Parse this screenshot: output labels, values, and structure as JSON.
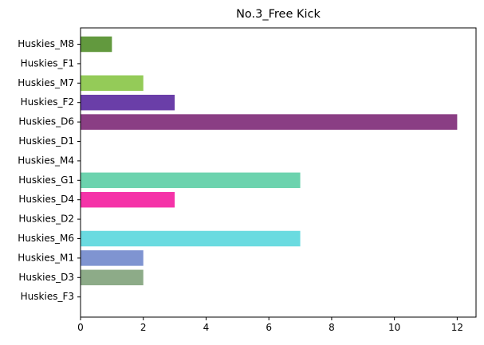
{
  "chart_data": {
    "type": "bar",
    "orientation": "horizontal",
    "title": "No.3_Free Kick",
    "xlabel": "",
    "ylabel": "",
    "xlim": [
      0,
      12.6
    ],
    "xticks": [
      0,
      2,
      4,
      6,
      8,
      10,
      12
    ],
    "grid": false,
    "categories": [
      "Huskies_M8",
      "Huskies_F1",
      "Huskies_M7",
      "Huskies_F2",
      "Huskies_D6",
      "Huskies_D1",
      "Huskies_M4",
      "Huskies_G1",
      "Huskies_D4",
      "Huskies_D2",
      "Huskies_M6",
      "Huskies_M1",
      "Huskies_D3",
      "Huskies_F3"
    ],
    "values": [
      1,
      0,
      2,
      3,
      12,
      0,
      0,
      7,
      3,
      0,
      7,
      2,
      2,
      0
    ],
    "colors": [
      "#62993e",
      "#3a5a9c",
      "#94cb58",
      "#6a3ea8",
      "#8a3e84",
      "#4a4a4a",
      "#4a4a4a",
      "#6cd3ae",
      "#f533a8",
      "#4a4a4a",
      "#6adbe0",
      "#7f94d1",
      "#8dab88",
      "#4a4a4a"
    ]
  }
}
